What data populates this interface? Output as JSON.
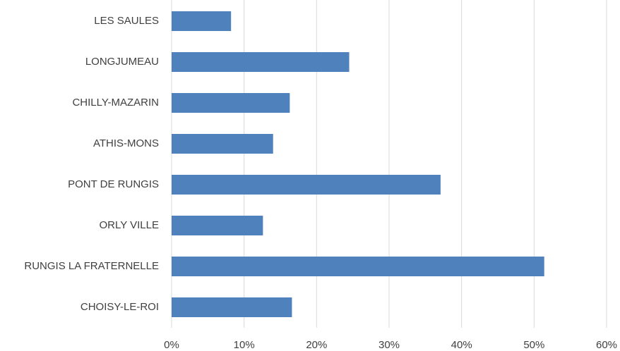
{
  "chart_data": {
    "type": "barh",
    "categories": [
      "LES SAULES",
      "LONGJUMEAU",
      "CHILLY-MAZARIN",
      "ATHIS-MONS",
      "PONT DE RUNGIS",
      "ORLY VILLE",
      "RUNGIS LA FRATERNELLE",
      "CHOISY-LE-ROI"
    ],
    "values": [
      8.2,
      24.5,
      16.3,
      14.0,
      37.1,
      12.6,
      51.4,
      16.6
    ],
    "color": "#4f81bd",
    "xlim": [
      0,
      60
    ],
    "xticks": [
      {
        "value": 0,
        "label": "0%"
      },
      {
        "value": 10,
        "label": "10%"
      },
      {
        "value": 20,
        "label": "20%"
      },
      {
        "value": 30,
        "label": "30%"
      },
      {
        "value": 40,
        "label": "40%"
      },
      {
        "value": 50,
        "label": "50%"
      },
      {
        "value": 60,
        "label": "60%"
      }
    ],
    "grid": true
  }
}
